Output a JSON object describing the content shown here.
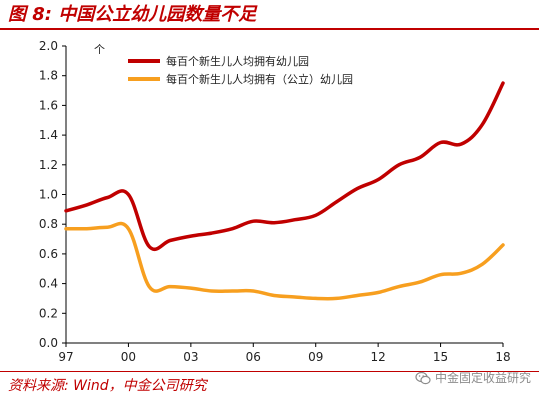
{
  "header": {
    "title": "图 8:  中国公立幼儿园数量不足"
  },
  "footer": {
    "source": "资料来源: Wind，中金公司研究",
    "watermark": "中金固定收益研究",
    "watermark_icon": "wechat-icon"
  },
  "chart_data": {
    "type": "line",
    "ylabel": "个",
    "ylim": [
      0.0,
      2.0
    ],
    "yticks": [
      "0.0",
      "0.2",
      "0.4",
      "0.6",
      "0.8",
      "1.0",
      "1.2",
      "1.4",
      "1.6",
      "1.8",
      "2.0"
    ],
    "xlim": [
      1997,
      2018
    ],
    "xticks": [
      "97",
      "00",
      "03",
      "06",
      "09",
      "12",
      "15",
      "18"
    ],
    "legend_position": "top-left",
    "x": [
      1997,
      1998,
      1999,
      2000,
      2001,
      2002,
      2003,
      2004,
      2005,
      2006,
      2007,
      2008,
      2009,
      2010,
      2011,
      2012,
      2013,
      2014,
      2015,
      2016,
      2017,
      2018
    ],
    "series": [
      {
        "name": "每百个新生儿人均拥有幼儿园",
        "color": "#c00000",
        "values": [
          0.89,
          0.93,
          0.98,
          1.0,
          0.65,
          0.69,
          0.72,
          0.74,
          0.77,
          0.82,
          0.81,
          0.83,
          0.86,
          0.95,
          1.04,
          1.1,
          1.2,
          1.25,
          1.35,
          1.34,
          1.47,
          1.75
        ]
      },
      {
        "name": "每百个新生儿人均拥有（公立）幼儿园",
        "color": "#f79f1f",
        "values": [
          0.77,
          0.77,
          0.78,
          0.77,
          0.38,
          0.38,
          0.37,
          0.35,
          0.35,
          0.35,
          0.32,
          0.31,
          0.3,
          0.3,
          0.32,
          0.34,
          0.38,
          0.41,
          0.46,
          0.47,
          0.53,
          0.66
        ]
      }
    ]
  }
}
